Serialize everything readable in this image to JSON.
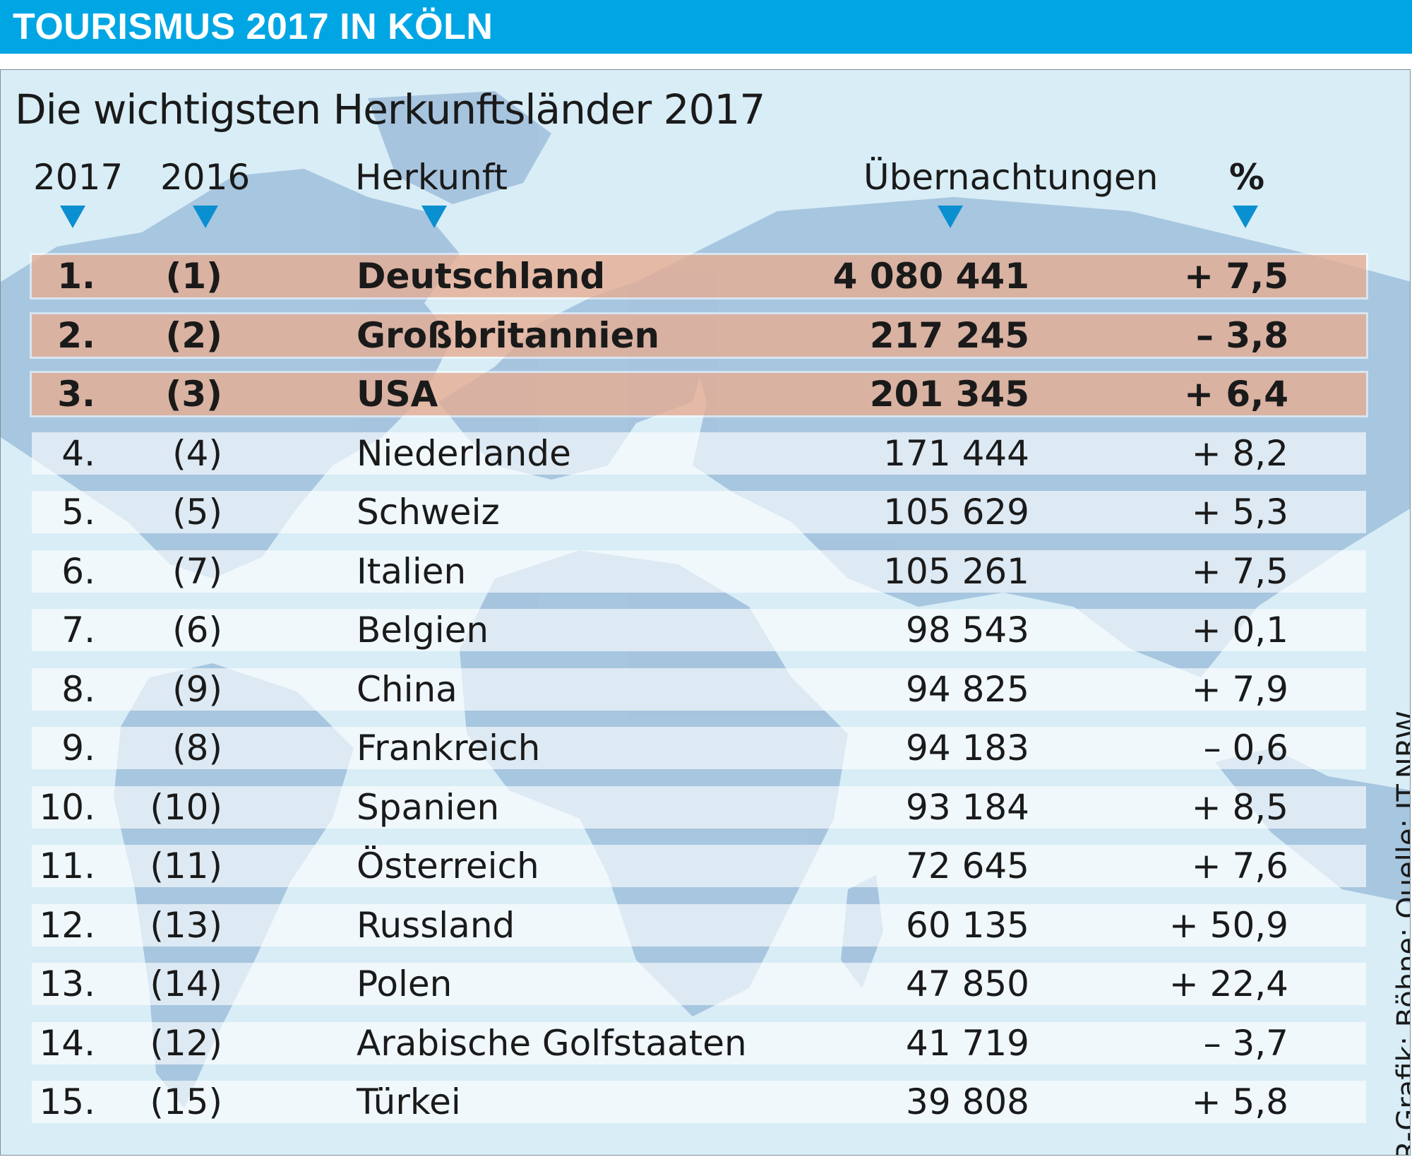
{
  "header": {
    "title": "TOURISMUS 2017 IN KÖLN"
  },
  "subtitle": "Die wichtigsten Herkunftsländer 2017",
  "columns": {
    "rank_2017": "2017",
    "rank_2016": "2016",
    "origin": "Herkunft",
    "overnights": "Übernachtungen",
    "percent": "%"
  },
  "colors": {
    "header_bg": "#00a6e4",
    "arrow": "#0a8fd0",
    "panel_bg": "#d8edf6",
    "map_land": "#8fb1d3",
    "highlight": "#e7ac91"
  },
  "chart_data": {
    "type": "table",
    "title": "Die wichtigsten Herkunftsländer 2017",
    "headers": [
      "2017",
      "2016",
      "Herkunft",
      "Übernachtungen",
      "%"
    ],
    "highlighted_rows": 3,
    "rows": [
      {
        "rank": "1.",
        "prev": "(1)",
        "name": "Deutschland",
        "value": "4 080 441",
        "pct": "+ 7,5"
      },
      {
        "rank": "2.",
        "prev": "(2)",
        "name": "Großbritannien",
        "value": "217 245",
        "pct": "– 3,8"
      },
      {
        "rank": "3.",
        "prev": "(3)",
        "name": "USA",
        "value": "201 345",
        "pct": "+ 6,4"
      },
      {
        "rank": "4.",
        "prev": "(4)",
        "name": "Niederlande",
        "value": "171 444",
        "pct": "+ 8,2"
      },
      {
        "rank": "5.",
        "prev": "(5)",
        "name": "Schweiz",
        "value": "105 629",
        "pct": "+ 5,3"
      },
      {
        "rank": "6.",
        "prev": "(7)",
        "name": "Italien",
        "value": "105 261",
        "pct": "+ 7,5"
      },
      {
        "rank": "7.",
        "prev": "(6)",
        "name": "Belgien",
        "value": "98 543",
        "pct": "+ 0,1"
      },
      {
        "rank": "8.",
        "prev": "(9)",
        "name": "China",
        "value": "94 825",
        "pct": "+ 7,9"
      },
      {
        "rank": "9.",
        "prev": "(8)",
        "name": "Frankreich",
        "value": "94 183",
        "pct": "– 0,6"
      },
      {
        "rank": "10.",
        "prev": "(10)",
        "name": "Spanien",
        "value": "93 184",
        "pct": "+ 8,5"
      },
      {
        "rank": "11.",
        "prev": "(11)",
        "name": "Österreich",
        "value": "72 645",
        "pct": "+ 7,6"
      },
      {
        "rank": "12.",
        "prev": "(13)",
        "name": "Russland",
        "value": "60 135",
        "pct": "+ 50,9"
      },
      {
        "rank": "13.",
        "prev": "(14)",
        "name": "Polen",
        "value": "47 850",
        "pct": "+ 22,4"
      },
      {
        "rank": "14.",
        "prev": "(12)",
        "name": "Arabische Golfstaaten",
        "value": "41 719",
        "pct": "– 3,7"
      },
      {
        "rank": "15.",
        "prev": "(15)",
        "name": "Türkei",
        "value": "39 808",
        "pct": "+ 5,8"
      }
    ]
  },
  "source": "KR-Grafik: Böhne; Quelle: IT.NRW"
}
